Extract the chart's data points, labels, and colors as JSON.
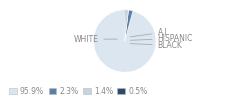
{
  "labels": [
    "WHITE",
    "A.I.",
    "HISPANIC",
    "BLACK"
  ],
  "values": [
    95.9,
    2.3,
    1.4,
    0.5
  ],
  "colors": [
    "#dce6f0",
    "#5b7fa6",
    "#c5d5df",
    "#2c4a6e"
  ],
  "legend_labels": [
    "95.9%",
    "2.3%",
    "1.4%",
    "0.5%"
  ],
  "legend_colors": [
    "#dce6f0",
    "#5b7fa6",
    "#c5d5df",
    "#2c4a6e"
  ],
  "startangle": 90,
  "bg_color": "#ffffff",
  "text_color": "#888888",
  "line_color": "#aaaaaa",
  "font_size": 5.5
}
